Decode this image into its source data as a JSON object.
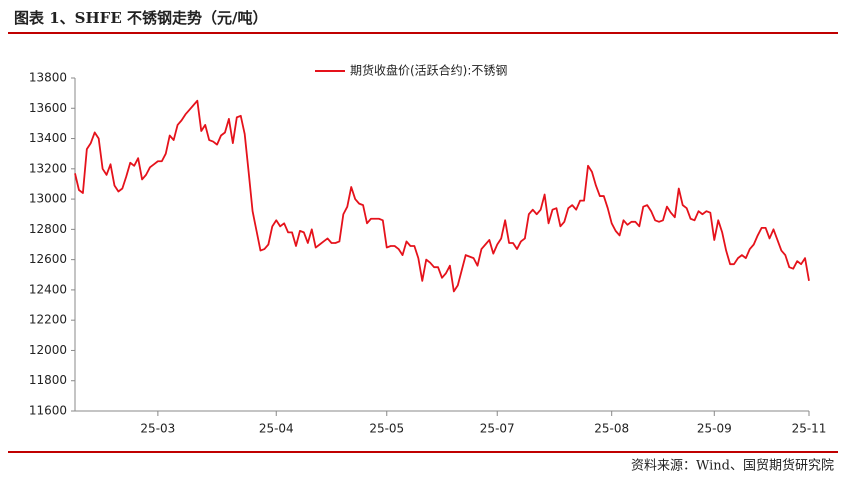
{
  "header": {
    "title": "图表 1、SHFE 不锈钢走势（元/吨）"
  },
  "footer": {
    "source": "资料来源：Wind、国贸期货研究院"
  },
  "chart_data": {
    "type": "line",
    "categories": [
      null,
      null,
      null,
      null,
      null,
      null,
      null,
      null,
      null,
      null,
      null,
      null,
      null,
      null,
      null,
      null,
      null,
      null,
      null,
      null,
      null,
      "25-03",
      null,
      null,
      null,
      null,
      null,
      null,
      null,
      null,
      null,
      null,
      null,
      null,
      null,
      null,
      null,
      null,
      null,
      null,
      null,
      null,
      null,
      null,
      null,
      null,
      null,
      null,
      null,
      null,
      null,
      "25-04",
      null,
      null,
      null,
      null,
      null,
      null,
      null,
      null,
      null,
      null,
      null,
      null,
      null,
      null,
      null,
      null,
      null,
      null,
      null,
      null,
      null,
      null,
      null,
      null,
      null,
      null,
      null,
      "25-05",
      null,
      null,
      null,
      null,
      null,
      null,
      null,
      null,
      null,
      null,
      null,
      null,
      null,
      null,
      null,
      null,
      null,
      null,
      null,
      null,
      null,
      null,
      null,
      null,
      null,
      null,
      null,
      "25-07",
      null,
      null,
      null,
      null,
      null,
      null,
      null,
      null,
      null,
      null,
      null,
      null,
      null,
      null,
      null,
      null,
      null,
      null,
      null,
      null,
      null,
      null,
      null,
      null,
      null,
      null,
      null,
      null,
      "25-08",
      null,
      null,
      null,
      null,
      null,
      null,
      null,
      null,
      null,
      null,
      null,
      null,
      null,
      null,
      null,
      null,
      null,
      null,
      null,
      null,
      null,
      null,
      null,
      null,
      null,
      "25-09",
      null,
      null,
      null,
      null,
      null,
      null,
      null,
      null,
      null,
      null,
      null,
      null,
      null,
      null,
      null,
      null,
      null,
      null,
      null,
      null,
      null,
      null,
      null,
      "25-11"
    ],
    "series": [
      {
        "name": "期货收盘价(活跃合约):不锈钢",
        "color": "#e5121b",
        "values": [
          13170,
          13060,
          13040,
          13330,
          13370,
          13440,
          13400,
          13200,
          13160,
          13230,
          13090,
          13050,
          13070,
          13150,
          13240,
          13220,
          13270,
          13130,
          13160,
          13210,
          13230,
          13250,
          13250,
          13300,
          13420,
          13390,
          13490,
          13520,
          13560,
          13590,
          13620,
          13650,
          13450,
          13490,
          13390,
          13380,
          13360,
          13420,
          13440,
          13530,
          13370,
          13540,
          13550,
          13430,
          13180,
          12920,
          12790,
          12660,
          12670,
          12700,
          12820,
          12860,
          12820,
          12840,
          12780,
          12780,
          12690,
          12790,
          12780,
          12710,
          12800,
          12680,
          12700,
          12720,
          12740,
          12710,
          12710,
          12720,
          12900,
          12950,
          13080,
          13000,
          12970,
          12960,
          12840,
          12870,
          12870,
          12870,
          12860,
          12680,
          12690,
          12690,
          12670,
          12630,
          12720,
          12690,
          12690,
          12610,
          12460,
          12600,
          12580,
          12550,
          12550,
          12480,
          12510,
          12560,
          12390,
          12430,
          12530,
          12630,
          12620,
          12610,
          12560,
          12670,
          12700,
          12730,
          12640,
          12700,
          12740,
          12860,
          12710,
          12710,
          12670,
          12720,
          12740,
          12900,
          12930,
          12900,
          12930,
          13030,
          12840,
          12930,
          12940,
          12820,
          12850,
          12940,
          12960,
          12930,
          12990,
          12990,
          13220,
          13180,
          13090,
          13020,
          13020,
          12940,
          12840,
          12790,
          12760,
          12860,
          12830,
          12850,
          12850,
          12820,
          12950,
          12960,
          12920,
          12860,
          12850,
          12860,
          12950,
          12910,
          12880,
          13070,
          12960,
          12940,
          12870,
          12860,
          12920,
          12900,
          12920,
          12910,
          12730,
          12860,
          12780,
          12660,
          12570,
          12570,
          12610,
          12630,
          12610,
          12670,
          12700,
          12760,
          12810,
          12810,
          12740,
          12800,
          12730,
          12660,
          12630,
          12550,
          12540,
          12590,
          12570,
          12610,
          12460
        ]
      }
    ],
    "ylim": [
      11600,
      13800
    ],
    "yticks": [
      11600,
      11800,
      12000,
      12200,
      12400,
      12600,
      12800,
      13000,
      13200,
      13400,
      13600,
      13800
    ],
    "grid": false,
    "legend": "top"
  }
}
